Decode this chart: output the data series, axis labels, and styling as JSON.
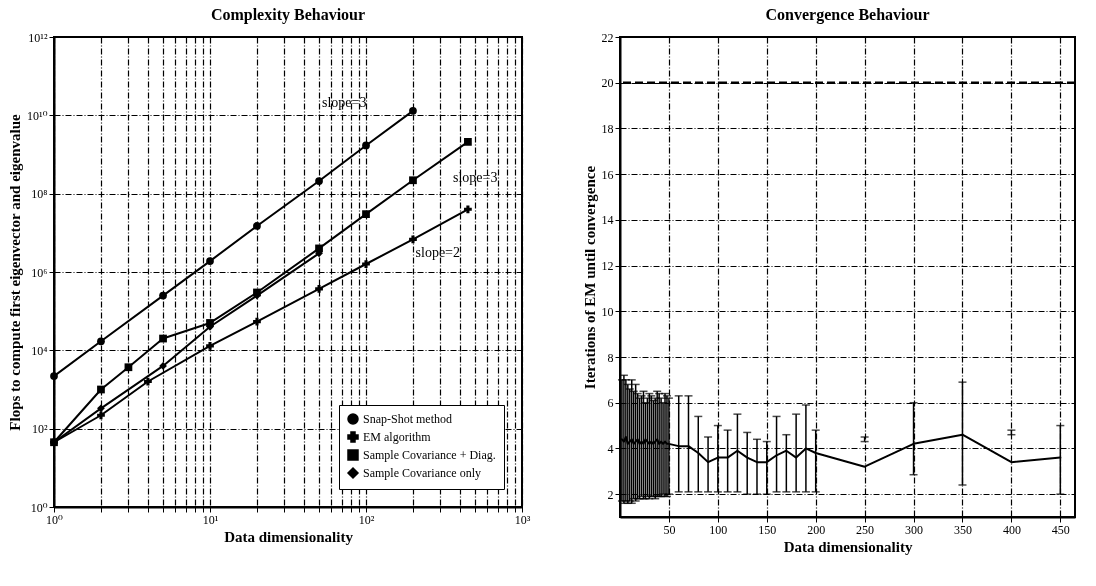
{
  "chart_data": [
    {
      "type": "line",
      "title": "Complexity Behaviour",
      "xlabel": "Data dimensionality",
      "ylabel": "Flops to compute first eigenvector and eigenvalue",
      "log": "xy",
      "grid": true,
      "legend": "bottom right",
      "line_style": "solid",
      "xlim": [
        1,
        1000
      ],
      "ylim": [
        1,
        1000000000000
      ],
      "xticks": [
        {
          "value": 1,
          "label": "10⁰"
        },
        {
          "value": 2,
          "label": null
        },
        {
          "value": 3,
          "label": null
        },
        {
          "value": 4,
          "label": null
        },
        {
          "value": 5,
          "label": null
        },
        {
          "value": 6,
          "label": null
        },
        {
          "value": 7,
          "label": null
        },
        {
          "value": 8,
          "label": null
        },
        {
          "value": 9,
          "label": null
        },
        {
          "value": 10,
          "label": "10¹"
        },
        {
          "value": 20,
          "label": null
        },
        {
          "value": 30,
          "label": null
        },
        {
          "value": 40,
          "label": null
        },
        {
          "value": 50,
          "label": null
        },
        {
          "value": 60,
          "label": null
        },
        {
          "value": 70,
          "label": null
        },
        {
          "value": 80,
          "label": null
        },
        {
          "value": 90,
          "label": null
        },
        {
          "value": 100,
          "label": "10²"
        },
        {
          "value": 200,
          "label": null
        },
        {
          "value": 300,
          "label": null
        },
        {
          "value": 400,
          "label": null
        },
        {
          "value": 500,
          "label": null
        },
        {
          "value": 600,
          "label": null
        },
        {
          "value": 700,
          "label": null
        },
        {
          "value": 800,
          "label": null
        },
        {
          "value": 900,
          "label": null
        },
        {
          "value": 1000,
          "label": "10³"
        }
      ],
      "yticks": [
        {
          "value": 1,
          "label": "10⁰"
        },
        {
          "value": 100,
          "label": "10²"
        },
        {
          "value": 10000,
          "label": "10⁴"
        },
        {
          "value": 1000000,
          "label": "10⁶"
        },
        {
          "value": 100000000,
          "label": "10⁸"
        },
        {
          "value": 10000000000,
          "label": "10¹⁰"
        },
        {
          "value": 1000000000000,
          "label": "10¹²"
        }
      ],
      "series": [
        {
          "name": "Snap-Shot method",
          "color": "#000000",
          "marker": "circle",
          "x": [
            1,
            2,
            5,
            10,
            20,
            50,
            100,
            200
          ],
          "values": [
            2200,
            17000,
            250000,
            1900000,
            15000000,
            210000000,
            1700000000,
            13000000000
          ]
        },
        {
          "name": "EM algorithm",
          "color": "#000000",
          "marker": "cross",
          "x": [
            1,
            2,
            4,
            10,
            20,
            50,
            100,
            200,
            450
          ],
          "values": [
            45,
            220,
            1600,
            13000,
            54000,
            370000,
            1600000,
            6800000,
            40000000
          ]
        },
        {
          "name": "Sample Covariance + Diag.",
          "color": "#000000",
          "marker": "square",
          "x": [
            1,
            2,
            3,
            5,
            10,
            20,
            50,
            100,
            200,
            450
          ],
          "values": [
            45,
            1000,
            3700,
            20000,
            50000,
            300000,
            4000000,
            30000000,
            220000000,
            2100000000
          ]
        },
        {
          "name": "Sample Covariance only",
          "color": "#000000",
          "marker": "diamond",
          "x": [
            1,
            2,
            5,
            10,
            20,
            50
          ],
          "values": [
            45,
            330,
            4000,
            40000,
            250000,
            3000000
          ]
        }
      ],
      "annotations": [
        "slope=3",
        "slope=3",
        "slope=2"
      ]
    },
    {
      "type": "line",
      "title": "Convergence Behaviour",
      "xlabel": "Data dimensionality",
      "ylabel": "Iterations of EM until convergence",
      "grid": true,
      "marker": "none",
      "line_style": "solid",
      "xlim": [
        0,
        465
      ],
      "ylim": [
        1,
        22
      ],
      "xticks": [
        50,
        100,
        150,
        200,
        250,
        300,
        350,
        400,
        450
      ],
      "yticks": [
        2,
        4,
        6,
        8,
        10,
        12,
        14,
        16,
        18,
        20,
        22
      ],
      "ref_lines": [
        {
          "axis": "y",
          "value": 20,
          "line_style": "dashed",
          "color": "#000000"
        }
      ],
      "series": [
        {
          "color": "#000000",
          "x": [
            2,
            4,
            6,
            8,
            10,
            12,
            14,
            16,
            18,
            20,
            22,
            24,
            26,
            28,
            30,
            32,
            34,
            36,
            38,
            40,
            42,
            44,
            46,
            48,
            50,
            60,
            70,
            80,
            90,
            100,
            110,
            120,
            130,
            140,
            150,
            160,
            170,
            180,
            190,
            200,
            250,
            300,
            350,
            400,
            450
          ],
          "values": [
            4.4,
            4.3,
            4.5,
            4.2,
            4.3,
            4.4,
            4.2,
            4.3,
            4.4,
            4.2,
            4.3,
            4.2,
            4.4,
            4.3,
            4.2,
            4.3,
            4.2,
            4.3,
            4.4,
            4.2,
            4.3,
            4.2,
            4.3,
            4.2,
            4.2,
            4.1,
            4.1,
            3.8,
            3.4,
            3.6,
            3.6,
            3.9,
            3.6,
            3.4,
            3.4,
            3.7,
            3.9,
            3.6,
            4.0,
            3.8,
            3.2,
            4.2,
            4.6,
            3.4,
            3.6
          ],
          "errors": [
            [
              1.7,
              7.0
            ],
            [
              1.6,
              7.2
            ],
            [
              1.7,
              7.0
            ],
            [
              1.6,
              6.8
            ],
            [
              1.7,
              6.6
            ],
            [
              1.6,
              7.0
            ],
            [
              1.8,
              6.5
            ],
            [
              1.7,
              6.8
            ],
            [
              1.8,
              6.4
            ],
            [
              1.8,
              6.2
            ],
            [
              1.9,
              6.3
            ],
            [
              1.8,
              6.5
            ],
            [
              1.8,
              6.0
            ],
            [
              1.9,
              6.2
            ],
            [
              1.8,
              6.4
            ],
            [
              1.9,
              6.3
            ],
            [
              1.9,
              6.1
            ],
            [
              1.8,
              6.2
            ],
            [
              1.9,
              6.5
            ],
            [
              1.9,
              6.4
            ],
            [
              1.9,
              6.2
            ],
            [
              2.0,
              6.0
            ],
            [
              1.9,
              6.4
            ],
            [
              1.9,
              6.3
            ],
            [
              2.0,
              6.2
            ],
            [
              2.1,
              6.3
            ],
            [
              2.1,
              6.3
            ],
            [
              2.1,
              5.4
            ],
            [
              2.1,
              4.5
            ],
            [
              2.1,
              5.0
            ],
            [
              2.1,
              4.8
            ],
            [
              2.1,
              5.5
            ],
            [
              2.0,
              4.7
            ],
            [
              2.0,
              4.4
            ],
            [
              2.0,
              4.3
            ],
            [
              2.1,
              5.4
            ],
            [
              2.1,
              4.6
            ],
            [
              2.1,
              5.5
            ],
            [
              2.1,
              5.9
            ],
            [
              2.1,
              4.8
            ],
            [
              4.3,
              4.5
            ],
            [
              2.85,
              6.0
            ],
            [
              2.4,
              6.9
            ],
            [
              4.6,
              4.8
            ],
            [
              2.0,
              5.0
            ]
          ]
        }
      ]
    }
  ]
}
